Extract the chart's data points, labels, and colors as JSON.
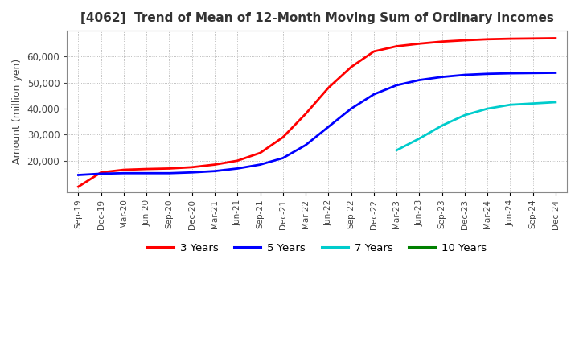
{
  "title": "[4062]  Trend of Mean of 12-Month Moving Sum of Ordinary Incomes",
  "ylabel": "Amount (million yen)",
  "line_colors": [
    "#ff0000",
    "#0000ff",
    "#00cccc",
    "#008000"
  ],
  "line_labels": [
    "3 Years",
    "5 Years",
    "7 Years",
    "10 Years"
  ],
  "background_color": "#ffffff",
  "plot_bg_color": "#ffffff",
  "grid_color": "#aaaaaa",
  "ylim_min": 8000,
  "ylim_max": 70000,
  "tick_dates": [
    "Sep-19",
    "Dec-19",
    "Mar-20",
    "Jun-20",
    "Sep-20",
    "Dec-20",
    "Mar-21",
    "Jun-21",
    "Sep-21",
    "Dec-21",
    "Mar-22",
    "Jun-22",
    "Sep-22",
    "Dec-22",
    "Mar-23",
    "Jun-23",
    "Sep-23",
    "Dec-23",
    "Mar-24",
    "Jun-24",
    "Sep-24",
    "Dec-24"
  ],
  "series_3yr": [
    10000,
    15500,
    16500,
    16800,
    17000,
    17500,
    18500,
    20000,
    23000,
    29000,
    38000,
    48000,
    56000,
    62000,
    64000,
    65000,
    65800,
    66300,
    66700,
    66900,
    67000,
    67100
  ],
  "series_5yr": [
    14500,
    15000,
    15200,
    15200,
    15200,
    15500,
    16000,
    17000,
    18500,
    21000,
    26000,
    33000,
    40000,
    45500,
    49000,
    51000,
    52200,
    53000,
    53400,
    53600,
    53700,
    53800
  ],
  "series_7yr": [
    null,
    null,
    null,
    null,
    null,
    null,
    null,
    null,
    null,
    null,
    null,
    null,
    null,
    null,
    24000,
    28500,
    33500,
    37500,
    40000,
    41500,
    42000,
    42500
  ],
  "series_10yr": [
    null,
    null,
    null,
    null,
    null,
    null,
    null,
    null,
    null,
    null,
    null,
    null,
    null,
    null,
    null,
    null,
    null,
    null,
    null,
    null,
    null,
    null
  ],
  "yticks": [
    20000,
    30000,
    40000,
    50000,
    60000
  ]
}
